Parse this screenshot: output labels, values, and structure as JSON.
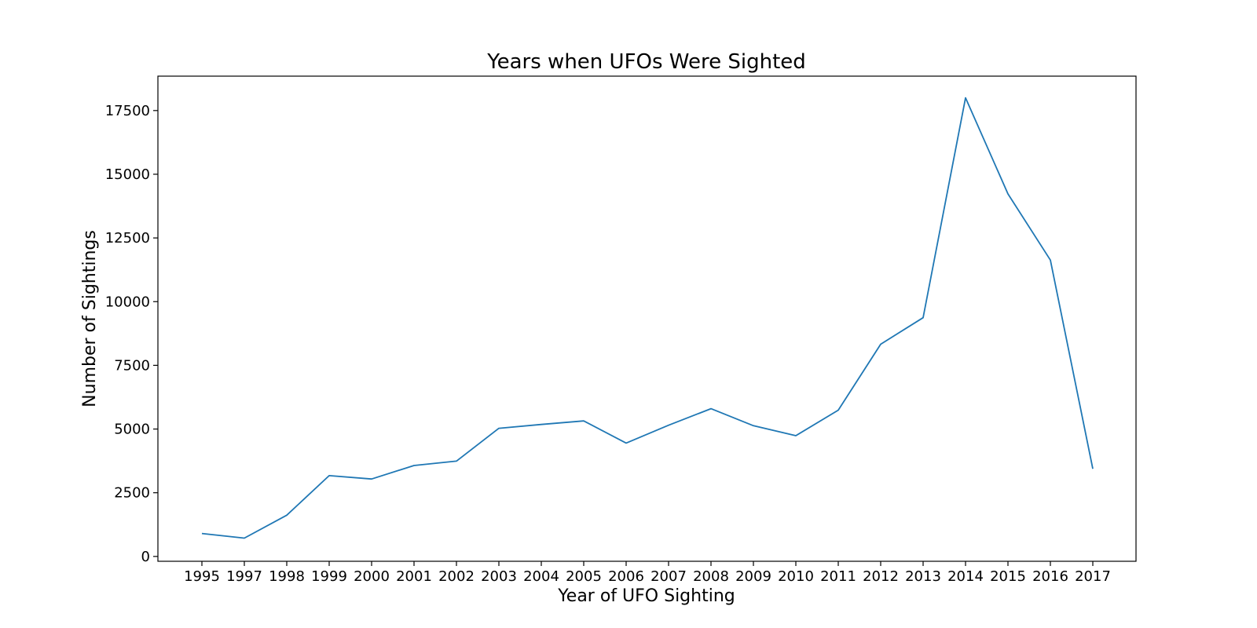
{
  "chart_data": {
    "type": "line",
    "title": "Years when UFOs Were Sighted",
    "xlabel": "Year of UFO Sighting",
    "ylabel": "Number of Sightings",
    "categories": [
      "1995",
      "1997",
      "1998",
      "1999",
      "2000",
      "2001",
      "2002",
      "2003",
      "2004",
      "2005",
      "2006",
      "2007",
      "2008",
      "2009",
      "2010",
      "2011",
      "2012",
      "2013",
      "2014",
      "2015",
      "2016",
      "2017"
    ],
    "series": [
      {
        "values": [
          900,
          720,
          1620,
          3170,
          3040,
          3570,
          3740,
          5030,
          5180,
          5320,
          4450,
          5150,
          5800,
          5130,
          4740,
          5740,
          8330,
          9370,
          18000,
          14230,
          11630,
          3440
        ],
        "color": "#1f77b4"
      }
    ],
    "ylim": [
      -190,
      18850
    ],
    "yticks": [
      0,
      2500,
      5000,
      7500,
      10000,
      12500,
      15000,
      17500
    ],
    "grid": false,
    "legend": "none"
  }
}
